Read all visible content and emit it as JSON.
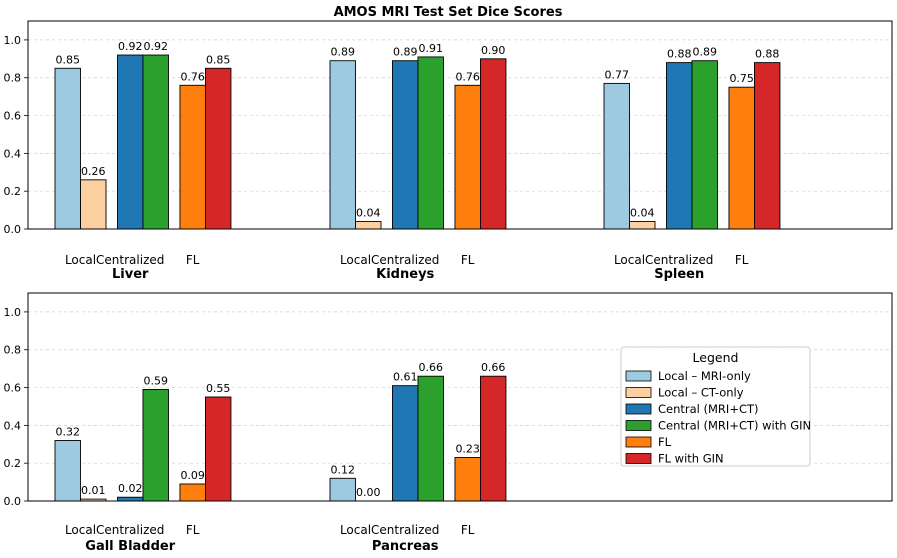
{
  "chart_data": {
    "type": "bar",
    "title": "AMOS MRI Test Set Dice Scores",
    "ylim": [
      0,
      1.1
    ],
    "yticks": [
      "0.0",
      "0.2",
      "0.4",
      "0.6",
      "0.8",
      "1.0"
    ],
    "grid": "horizontal-dashed",
    "subcategories": [
      "Local",
      "Centralized",
      "FL"
    ],
    "series": [
      {
        "name": "Local – MRI-only",
        "color": "#9ecae1"
      },
      {
        "name": "Local – CT-only",
        "color": "#fdd0a2"
      },
      {
        "name": "Central (MRI+CT)",
        "color": "#1f77b4"
      },
      {
        "name": "Central (MRI+CT) with GIN",
        "color": "#2ca02c"
      },
      {
        "name": "FL",
        "color": "#ff7f0e"
      },
      {
        "name": "FL with GIN",
        "color": "#d62728"
      }
    ],
    "panels": [
      {
        "organs": [
          {
            "name": "Liver",
            "values": [
              0.85,
              0.26,
              0.92,
              0.92,
              0.76,
              0.85
            ],
            "labels": [
              "0.85",
              "0.26",
              "0.92",
              "0.92",
              "0.76",
              "0.85"
            ]
          },
          {
            "name": "Kidneys",
            "values": [
              0.89,
              0.04,
              0.89,
              0.91,
              0.76,
              0.9
            ],
            "labels": [
              "0.89",
              "0.04",
              "0.89",
              "0.91",
              "0.76",
              "0.90"
            ]
          },
          {
            "name": "Spleen",
            "values": [
              0.77,
              0.04,
              0.88,
              0.89,
              0.75,
              0.88
            ],
            "labels": [
              "0.77",
              "0.04",
              "0.88",
              "0.89",
              "0.75",
              "0.88"
            ]
          }
        ]
      },
      {
        "organs": [
          {
            "name": "Gall Bladder",
            "values": [
              0.32,
              0.01,
              0.02,
              0.59,
              0.09,
              0.55
            ],
            "labels": [
              "0.32",
              "0.01",
              "0.02",
              "0.59",
              "0.09",
              "0.55"
            ]
          },
          {
            "name": "Pancreas",
            "values": [
              0.12,
              0.0,
              0.61,
              0.66,
              0.23,
              0.66
            ],
            "labels": [
              "0.12",
              "0.00",
              "0.61",
              "0.66",
              "0.23",
              "0.66"
            ]
          }
        ]
      }
    ],
    "legend": {
      "title": "Legend",
      "placement": "bottom-panel-right"
    }
  }
}
